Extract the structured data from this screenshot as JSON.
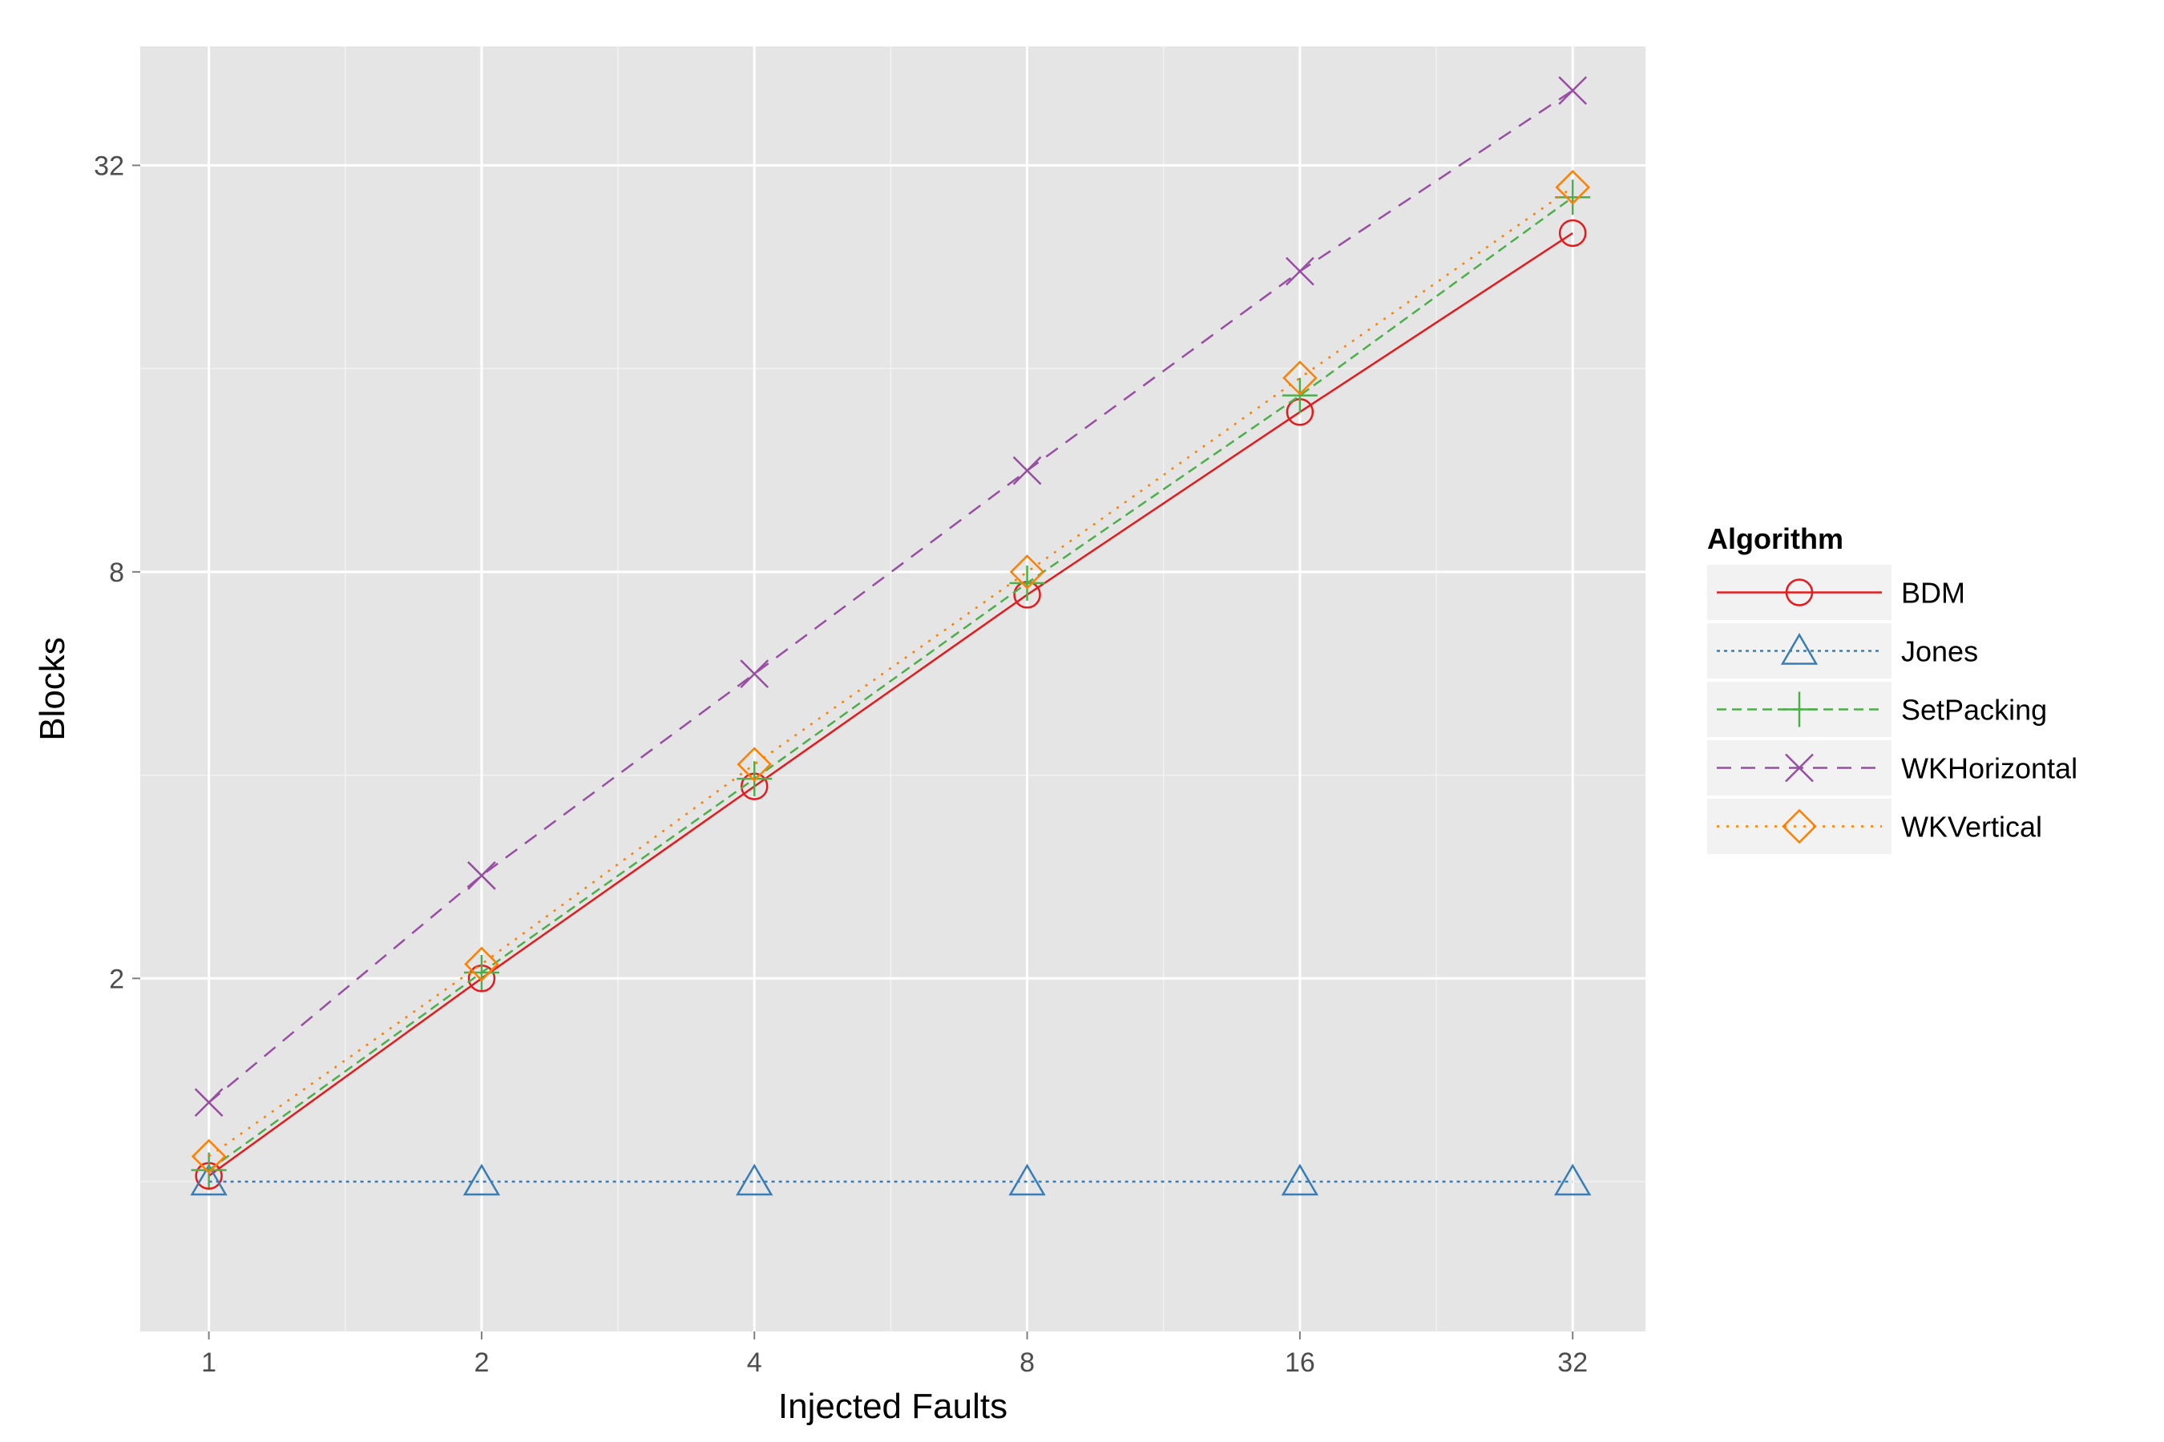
{
  "chart_data": {
    "type": "line",
    "xlabel": "Injected Faults",
    "ylabel": "Blocks",
    "x_scale": "log2",
    "y_scale": "log2",
    "x": [
      1,
      2,
      4,
      8,
      16,
      32
    ],
    "x_ticks": [
      "1",
      "2",
      "4",
      "8",
      "16",
      "32"
    ],
    "y_ticks": [
      "2",
      "8",
      "32"
    ],
    "xlim": [
      0.84,
      38.5
    ],
    "ylim": [
      0.6,
      48
    ],
    "grid": true,
    "background": "#E5E5E5",
    "legend": {
      "title": "Algorithm",
      "position": "right"
    },
    "series": [
      {
        "name": "BDM",
        "values": [
          1.02,
          2.0,
          3.85,
          7.4,
          13.8,
          25.4
        ],
        "color": "#E41A1C",
        "marker": "circle",
        "dash": "solid"
      },
      {
        "name": "Jones",
        "values": [
          1.0,
          1.0,
          1.0,
          1.0,
          1.0,
          1.0
        ],
        "color": "#377EB8",
        "marker": "triangle",
        "dash": "dotted-short"
      },
      {
        "name": "SetPacking",
        "values": [
          1.04,
          2.04,
          3.95,
          7.7,
          14.6,
          28.7
        ],
        "color": "#4DAF4A",
        "marker": "plus",
        "dash": "dashed"
      },
      {
        "name": "WKHorizontal",
        "values": [
          1.31,
          2.84,
          5.65,
          11.3,
          22.3,
          41.3
        ],
        "color": "#984EA3",
        "marker": "cross",
        "dash": "dashed-long"
      },
      {
        "name": "WKVertical",
        "values": [
          1.09,
          2.1,
          4.15,
          8.0,
          15.5,
          29.7
        ],
        "color": "#FF7F00",
        "marker": "diamond",
        "dash": "dotted"
      }
    ]
  }
}
